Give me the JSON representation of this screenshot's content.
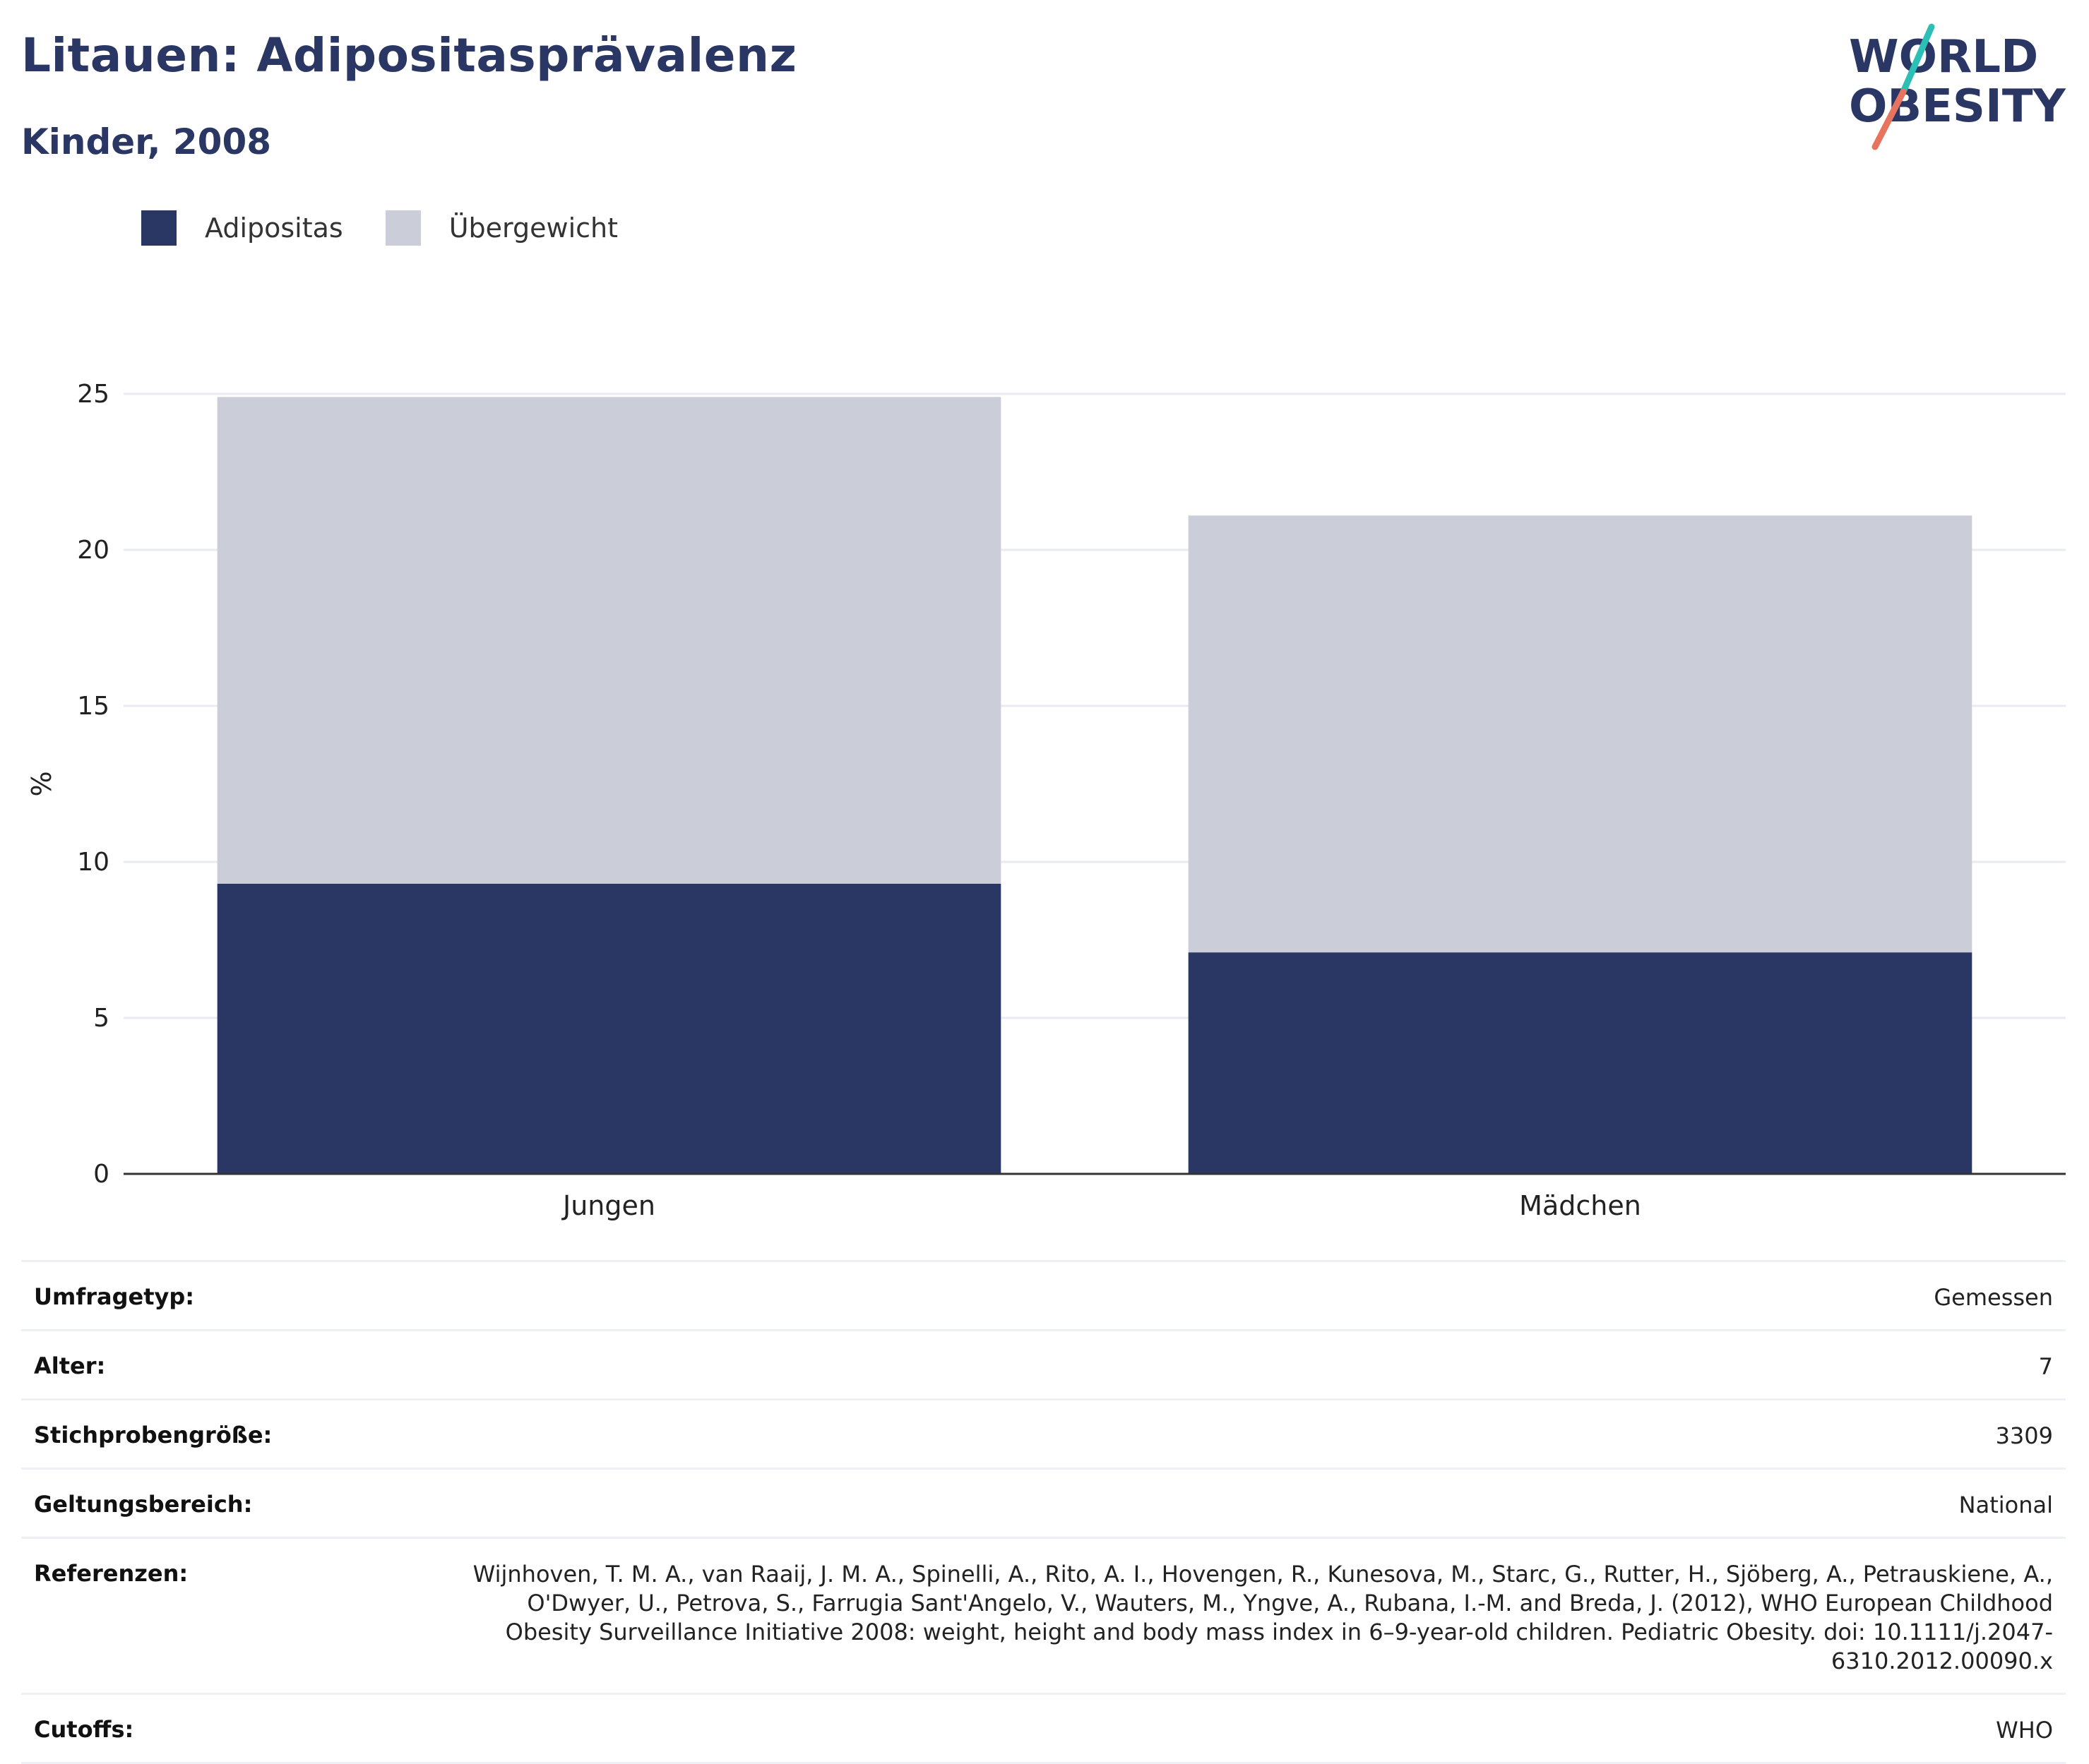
{
  "header": {
    "title": "Litauen: Adipositasprävalenz",
    "subtitle": "Kinder, 2008"
  },
  "logo": {
    "line1": "WORLD",
    "line2": "OBESITY",
    "colors": {
      "text": "#2a3663",
      "slash_top": "#2bbfb5",
      "slash_bottom": "#e8735e"
    }
  },
  "legend": [
    {
      "label": "Adipositas",
      "color": "#2a3663"
    },
    {
      "label": "Übergewicht",
      "color": "#cbcdd8"
    }
  ],
  "chart_data": {
    "type": "bar",
    "stacked": true,
    "categories": [
      "Jungen",
      "Mädchen"
    ],
    "series": [
      {
        "name": "Adipositas",
        "values": [
          9.3,
          7.1
        ],
        "color": "#2a3663"
      },
      {
        "name": "Übergewicht",
        "values": [
          15.6,
          14.0
        ],
        "color": "#cbcdd8"
      }
    ],
    "totals": [
      24.9,
      21.1
    ],
    "ylabel": "%",
    "ylim": [
      0,
      25
    ],
    "yticks": [
      "0",
      "5",
      "10",
      "15",
      "20",
      "25"
    ],
    "grid": true,
    "legend_position": "top-left"
  },
  "info": [
    {
      "label": "Umfragetyp:",
      "value": "Gemessen"
    },
    {
      "label": "Alter:",
      "value": "7"
    },
    {
      "label": "Stichprobengröße:",
      "value": "3309"
    },
    {
      "label": "Geltungsbereich:",
      "value": "National"
    },
    {
      "label": "Referenzen:",
      "value": "Wijnhoven, T. M. A., van Raaij, J. M. A., Spinelli, A., Rito, A. I., Hovengen, R., Kunesova, M., Starc, G., Rutter, H., Sjöberg, A., Petrauskiene, A., O'Dwyer, U., Petrova, S., Farrugia Sant'Angelo, V., Wauters, M., Yngve, A., Rubana, I.-M. and Breda, J. (2012), WHO European Childhood Obesity Surveillance Initiative 2008: weight, height and body mass index in 6–9-year-old children. Pediatric Obesity. doi: 10.1111/j.2047-6310.2012.00090.x"
    },
    {
      "label": "Cutoffs:",
      "value": "WHO"
    }
  ]
}
